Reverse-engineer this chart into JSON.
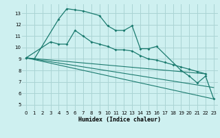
{
  "bg_color": "#cef0f0",
  "grid_color": "#aad4d4",
  "line_color": "#1a7a6e",
  "xlabel": "Humidex (Indice chaleur)",
  "xlim": [
    -0.5,
    23.5
  ],
  "ylim": [
    4.5,
    13.8
  ],
  "yticks": [
    5,
    6,
    7,
    8,
    9,
    10,
    11,
    12,
    13
  ],
  "xticks": [
    0,
    1,
    2,
    3,
    4,
    5,
    6,
    7,
    8,
    9,
    10,
    11,
    12,
    13,
    14,
    15,
    16,
    17,
    18,
    19,
    20,
    21,
    22,
    23
  ],
  "series1_x": [
    0,
    1,
    4,
    5,
    6,
    7,
    9,
    10,
    11,
    12,
    13,
    14,
    15,
    16,
    19,
    20,
    21,
    22,
    23
  ],
  "series1_y": [
    9.1,
    9.0,
    12.5,
    13.4,
    13.3,
    13.2,
    12.8,
    11.9,
    11.5,
    11.5,
    11.9,
    9.9,
    9.9,
    10.1,
    8.0,
    7.5,
    6.9,
    7.5,
    5.5
  ],
  "series2_x": [
    0,
    3,
    4,
    5,
    6,
    7,
    8,
    9,
    10,
    11,
    12,
    13,
    14,
    15,
    16,
    17,
    18,
    19,
    20,
    21,
    22
  ],
  "series2_y": [
    9.1,
    10.5,
    10.3,
    10.3,
    11.5,
    11.0,
    10.5,
    10.3,
    10.1,
    9.8,
    9.8,
    9.7,
    9.3,
    9.0,
    8.9,
    8.7,
    8.5,
    8.3,
    8.1,
    7.9,
    7.7
  ],
  "series3_x": [
    0,
    22
  ],
  "series3_y": [
    9.1,
    7.7
  ],
  "series4_x": [
    0,
    23
  ],
  "series4_y": [
    9.1,
    5.5
  ],
  "series5_x": [
    0,
    23
  ],
  "series5_y": [
    9.1,
    6.5
  ]
}
